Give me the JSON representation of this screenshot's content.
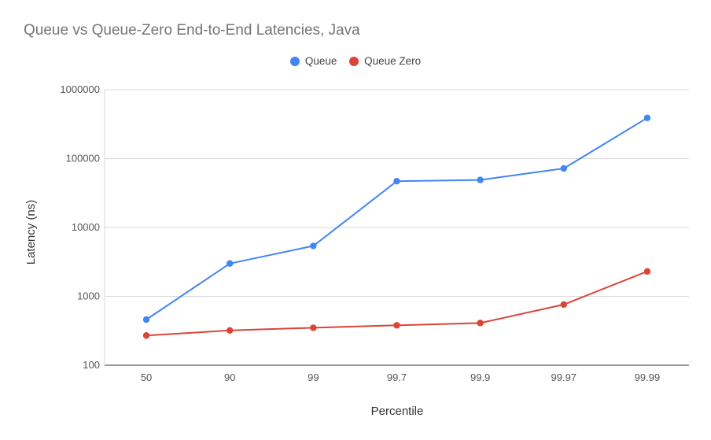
{
  "chart_data": {
    "type": "line",
    "title": "Queue vs Queue-Zero End-to-End Latencies, Java",
    "xlabel": "Percentile",
    "ylabel": "Latency (ns)",
    "yscale": "log",
    "ylim": [
      100,
      1000000
    ],
    "yticks": [
      "100",
      "1000",
      "10000",
      "100000",
      "1000000"
    ],
    "categories": [
      "50",
      "90",
      "99",
      "99.7",
      "99.9",
      "99.97",
      "99.99"
    ],
    "grid": true,
    "legend_position": "top-center",
    "series": [
      {
        "name": "Queue",
        "color": "#4285f4",
        "values": [
          460,
          3000,
          5400,
          47000,
          49000,
          72000,
          390000
        ]
      },
      {
        "name": "Queue Zero",
        "color": "#db4437",
        "values": [
          270,
          320,
          350,
          380,
          410,
          760,
          2300
        ]
      }
    ]
  }
}
